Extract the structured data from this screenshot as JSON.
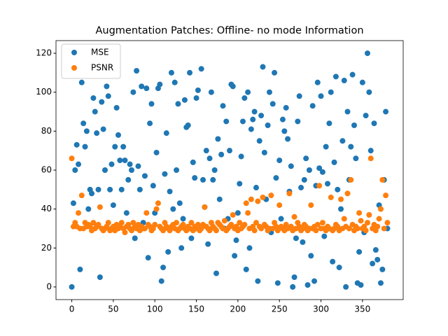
{
  "chart_data": {
    "type": "scatter",
    "title": "Augmentation Patches: Offline- no mode Information",
    "x": [
      0,
      2,
      4,
      6,
      8,
      10,
      12,
      14,
      16,
      18,
      20,
      22,
      24,
      26,
      28,
      30,
      32,
      34,
      36,
      38,
      40,
      42,
      44,
      46,
      48,
      50,
      52,
      54,
      56,
      58,
      60,
      62,
      64,
      66,
      68,
      70,
      72,
      74,
      76,
      78,
      80,
      82,
      84,
      86,
      88,
      90,
      92,
      94,
      96,
      98,
      100,
      102,
      104,
      106,
      108,
      110,
      112,
      114,
      116,
      118,
      120,
      122,
      124,
      126,
      128,
      130,
      132,
      134,
      136,
      138,
      140,
      142,
      144,
      146,
      148,
      150,
      152,
      154,
      156,
      158,
      160,
      162,
      164,
      166,
      168,
      170,
      172,
      174,
      176,
      178,
      180,
      182,
      184,
      186,
      188,
      190,
      192,
      194,
      196,
      198,
      200,
      202,
      204,
      206,
      208,
      210,
      212,
      214,
      216,
      218,
      220,
      222,
      224,
      226,
      228,
      230,
      232,
      234,
      236,
      238,
      240,
      242,
      244,
      246,
      248,
      250,
      252,
      254,
      256,
      258,
      260,
      262,
      264,
      266,
      268,
      270,
      272,
      274,
      276,
      278,
      280,
      282,
      284,
      286,
      288,
      290,
      292,
      294,
      296,
      298,
      300,
      302,
      304,
      306,
      308,
      310,
      312,
      314,
      316,
      318,
      320,
      322,
      324,
      326,
      328,
      330,
      332,
      334,
      336,
      338,
      340,
      342,
      344,
      346,
      348,
      350,
      352,
      354,
      356,
      358,
      360,
      362,
      364,
      366,
      368,
      370,
      372,
      374,
      376,
      378,
      380
    ],
    "series": [
      {
        "name": "MSE",
        "color": "#1f77b4",
        "values": [
          0,
          43,
          60,
          73,
          63,
          9,
          105,
          84,
          72,
          80,
          40,
          50,
          48,
          97,
          90,
          79,
          50,
          5,
          95,
          81,
          60,
          103,
          98,
          50,
          63,
          42,
          72,
          92,
          78,
          65,
          50,
          72,
          65,
          38,
          55,
          63,
          60,
          100,
          25,
          111,
          62,
          50,
          103,
          33,
          57,
          102,
          15,
          84,
          94,
          52,
          38,
          69,
          102,
          104,
          3,
          10,
          58,
          79,
          18,
          49,
          110,
          40,
          105,
          60,
          94,
          43,
          20,
          35,
          96,
          82,
          83,
          110,
          25,
          64,
          56,
          97,
          101,
          31,
          112,
          55,
          41,
          70,
          22,
          66,
          100,
          55,
          60,
          7,
          76,
          45,
          68,
          93,
          30,
          85,
          35,
          70,
          104,
          103,
          16,
          24,
          38,
          53,
          67,
          85,
          97,
          9,
          100,
          20,
          81,
          86,
          90,
          51,
          3,
          75,
          88,
          113,
          69,
          45,
          83,
          100,
          28,
          94,
          110,
          56,
          2,
          65,
          35,
          86,
          80,
          92,
          76,
          49,
          62,
          0,
          5,
          25,
          85,
          98,
          51,
          23,
          55,
          66,
          1,
          60,
          16,
          93,
          3,
          52,
          105,
          61,
          98,
          59,
          26,
          72,
          53,
          84,
          100,
          13,
          64,
          108,
          50,
          10,
          40,
          75,
          106,
          0,
          90,
          55,
          72,
          109,
          83,
          66,
          2,
          18,
          1,
          105,
          28,
          88,
          120,
          100,
          70,
          12,
          84,
          19,
          14,
          42,
          2,
          9,
          55,
          90,
          30
        ]
      },
      {
        "name": "PSNR",
        "color": "#ff7f0e",
        "values": [
          66,
          31,
          33,
          31,
          38,
          30,
          47,
          30,
          33,
          31,
          32,
          31,
          29,
          33,
          30,
          31,
          32,
          41,
          30,
          29,
          30,
          31,
          33,
          29,
          30,
          31,
          29,
          32,
          30,
          31,
          33,
          30,
          28,
          31,
          32,
          30,
          29,
          33,
          31,
          30,
          32,
          29,
          31,
          30,
          30,
          38,
          32,
          31,
          29,
          30,
          32,
          40,
          43,
          31,
          30,
          29,
          33,
          31,
          30,
          29,
          31,
          32,
          30,
          33,
          29,
          30,
          31,
          32,
          30,
          29,
          31,
          30,
          33,
          29,
          31,
          30,
          32,
          29,
          30,
          32,
          41,
          31,
          30,
          29,
          33,
          31,
          30,
          29,
          33,
          32,
          31,
          30,
          34,
          29,
          30,
          31,
          32,
          37,
          30,
          31,
          29,
          33,
          30,
          31,
          32,
          43,
          38,
          30,
          45,
          31,
          29,
          33,
          44,
          31,
          30,
          46,
          32,
          31,
          29,
          30,
          47,
          30,
          33,
          31,
          29,
          42,
          31,
          30,
          29,
          32,
          30,
          48,
          31,
          29,
          36,
          30,
          33,
          31,
          29,
          30,
          32,
          31,
          29,
          30,
          42,
          30,
          31,
          29,
          32,
          52,
          30,
          33,
          30,
          29,
          31,
          30,
          46,
          29,
          30,
          32,
          31,
          29,
          45,
          30,
          35,
          31,
          48,
          30,
          55,
          32,
          29,
          31,
          30,
          38,
          34,
          30,
          31,
          29,
          33,
          37,
          66,
          30,
          32,
          29,
          31,
          35,
          40,
          55,
          30,
          47,
          33
        ]
      }
    ],
    "xlim": [
      -19,
      399
    ],
    "ylim": [
      -6.5,
      126.5
    ],
    "xticks": [
      0,
      50,
      100,
      150,
      200,
      250,
      300,
      350
    ],
    "yticks": [
      0,
      20,
      40,
      60,
      80,
      100,
      120
    ],
    "legend": "upper left"
  }
}
